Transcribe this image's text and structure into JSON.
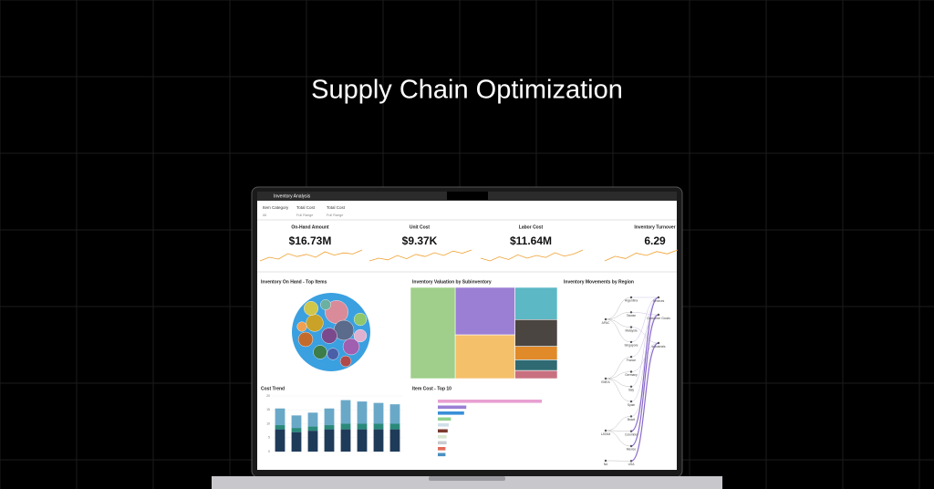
{
  "page": {
    "title": "Supply Chain Optimization"
  },
  "dashboard": {
    "title": "Inventory Analysis",
    "filters": [
      {
        "label": "Item Category",
        "value": "All"
      },
      {
        "label": "Total Cost",
        "value": "Full Range"
      },
      {
        "label": "Total Cost",
        "value": "Full Range"
      }
    ],
    "kpis": [
      {
        "label": "On-Hand Amount",
        "value": "$16.73M",
        "sparkline": [
          3,
          4,
          3.5,
          5,
          4.2,
          4.8,
          4,
          5.5,
          4.6,
          5.2,
          4.9,
          6
        ]
      },
      {
        "label": "Unit Cost",
        "value": "$9.37K",
        "sparkline": [
          4,
          4.5,
          4.2,
          5,
          4.4,
          5.2,
          4.8,
          5.5,
          5,
          5.8,
          5.4,
          6
        ]
      },
      {
        "label": "Labor Cost",
        "value": "$11.64M",
        "sparkline": [
          5,
          4.6,
          5.2,
          4.8,
          5.5,
          5,
          5.4,
          5.1,
          5.8,
          5.3,
          5.6,
          6.2
        ]
      },
      {
        "label": "Inventory Turnover",
        "value": "6.29",
        "sparkline": [
          4,
          4.6,
          4.3,
          5,
          4.7,
          5.2,
          4.9,
          5.4
        ]
      }
    ],
    "bubbles": {
      "title": "Inventory On Hand - Top Items",
      "values": [
        40,
        22,
        30,
        18,
        16,
        14,
        20,
        12,
        15,
        10,
        12,
        8,
        9,
        7
      ],
      "colors": [
        "#d98b9a",
        "#c9a227",
        "#5a6b8c",
        "#7b4a8c",
        "#c36a2d",
        "#3c7d4a",
        "#a05fb0",
        "#8fc76a",
        "#d0c64a",
        "#4a5fa8",
        "#e0b0d0",
        "#6bb0a0",
        "#b04a4a",
        "#f0a050"
      ]
    },
    "treemap": {
      "title": "Inventory Valuation by Subinventory",
      "columns": [
        {
          "values": [
            36
          ],
          "colors": [
            "#9fcf8a"
          ]
        },
        {
          "values": [
            25,
            23
          ],
          "colors": [
            "#9b7fd4",
            "#f5c06a"
          ]
        },
        {
          "values": [
            12,
            10,
            5,
            4,
            3
          ],
          "colors": [
            "#5cb8c4",
            "#4a4540",
            "#e08a2a",
            "#2f6a72",
            "#c87080"
          ]
        }
      ]
    },
    "regions": {
      "title": "Inventory Movements by Region",
      "sources": [
        "APAC",
        "EMEA",
        "LATAM",
        "NA"
      ],
      "countries": [
        "Argentina",
        "Taiwan",
        "Malaysia",
        "Singapore",
        "France",
        "Germany",
        "Italy",
        "Spain",
        "Brazil",
        "Colombia",
        "Mexico",
        "USA"
      ],
      "sectors": [
        "Services",
        "Consumer Goods",
        "Industrials"
      ]
    },
    "cost_trend": {
      "title": "Cost Trend",
      "ylim": [
        0,
        20
      ],
      "yticks": [
        0,
        5,
        10,
        15,
        20
      ],
      "series": [
        {
          "color": "#1f3b5a",
          "values": [
            8,
            7,
            7.5,
            8,
            8,
            8,
            8,
            8
          ]
        },
        {
          "color": "#2a8a7a",
          "values": [
            1.5,
            1.5,
            1.5,
            1.5,
            2,
            2,
            2,
            2
          ]
        },
        {
          "color": "#6aa8c8",
          "values": [
            6,
            4.5,
            5,
            6,
            8.5,
            8,
            7.5,
            7
          ]
        }
      ]
    },
    "item_cost": {
      "title": "Item Cost - Top 10",
      "xlim": [
        0,
        100
      ],
      "values": [
        95,
        26,
        24,
        12,
        10,
        9,
        8,
        8,
        7,
        7
      ],
      "colors": [
        "#e8a0d0",
        "#9b7fd4",
        "#3a8fd8",
        "#8fd18f",
        "#cfe0e8",
        "#7a3b2e",
        "#d8e8d0",
        "#c8ccd0",
        "#e06a5a",
        "#4a90c0"
      ]
    }
  }
}
